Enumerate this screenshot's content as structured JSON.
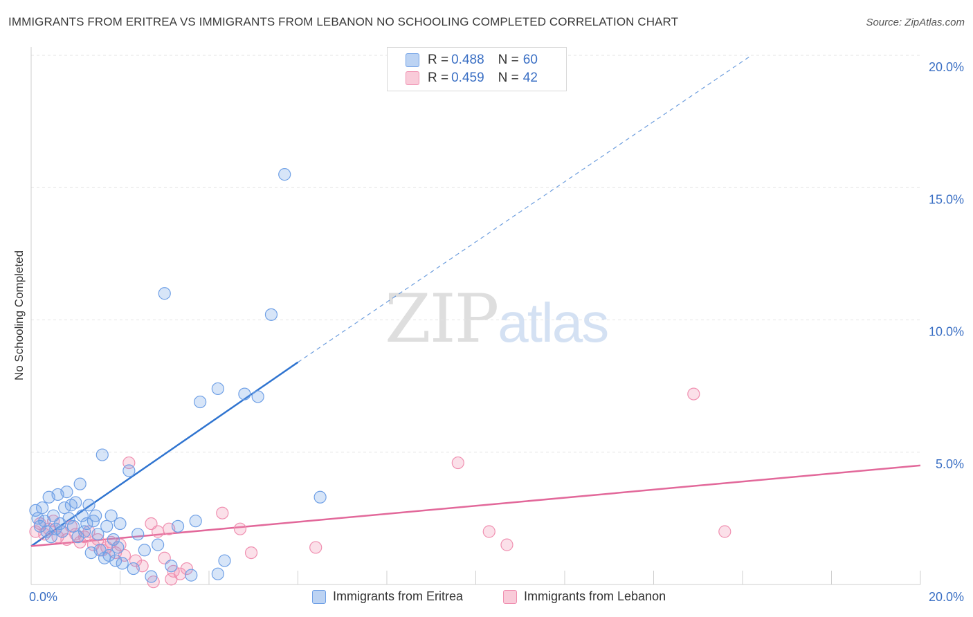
{
  "title": "IMMIGRANTS FROM ERITREA VS IMMIGRANTS FROM LEBANON NO SCHOOLING COMPLETED CORRELATION CHART",
  "source": "Source: ZipAtlas.com",
  "watermark": {
    "zip": "ZIP",
    "atlas": "atlas"
  },
  "colors": {
    "eritrea": "#6fa0e6",
    "lebanon": "#f08fb0",
    "eritrea_line": "#2f74d0",
    "lebanon_line": "#e2689a",
    "tick_label": "#3a6fc4"
  },
  "legend": {
    "r_label": "R = ",
    "n_label": "N = ",
    "rows": [
      {
        "r": "0.488",
        "n": "60"
      },
      {
        "r": "0.459",
        "n": "42"
      }
    ]
  },
  "chart_data": {
    "type": "scatter",
    "title": "IMMIGRANTS FROM ERITREA VS IMMIGRANTS FROM LEBANON NO SCHOOLING COMPLETED CORRELATION CHART",
    "xlabel": "",
    "ylabel": "No Schooling Completed",
    "xlim": [
      0,
      20
    ],
    "ylim": [
      0,
      20
    ],
    "x_tick_labels": [
      "0.0%",
      "20.0%"
    ],
    "y_tick_labels": [
      "5.0%",
      "10.0%",
      "15.0%",
      "20.0%"
    ],
    "y_ticks": [
      5,
      10,
      15,
      20
    ],
    "x_ticks": [
      0,
      2,
      4,
      6,
      8,
      10,
      12,
      14,
      16,
      18,
      20
    ],
    "grid": true,
    "legend_position": "bottom",
    "series": [
      {
        "name": "Immigrants from Eritrea",
        "r": 0.488,
        "n": 60,
        "trend": {
          "x0": 0,
          "y0": 1.45,
          "x1": 6.0,
          "y1": 8.4,
          "dashed_to": [
            16.2,
            20.0
          ]
        },
        "points": [
          [
            0.1,
            2.8
          ],
          [
            0.15,
            2.5
          ],
          [
            0.2,
            2.2
          ],
          [
            0.25,
            2.9
          ],
          [
            0.3,
            2.4
          ],
          [
            0.35,
            2.0
          ],
          [
            0.4,
            3.3
          ],
          [
            0.45,
            1.8
          ],
          [
            0.5,
            2.6
          ],
          [
            0.55,
            2.1
          ],
          [
            0.6,
            3.4
          ],
          [
            0.65,
            2.3
          ],
          [
            0.7,
            2.0
          ],
          [
            0.75,
            2.9
          ],
          [
            0.8,
            3.5
          ],
          [
            0.85,
            2.5
          ],
          [
            0.9,
            3.0
          ],
          [
            0.95,
            2.2
          ],
          [
            1.0,
            3.1
          ],
          [
            1.05,
            1.8
          ],
          [
            1.1,
            3.8
          ],
          [
            1.15,
            2.6
          ],
          [
            1.2,
            2.0
          ],
          [
            1.25,
            2.3
          ],
          [
            1.3,
            3.0
          ],
          [
            1.35,
            1.2
          ],
          [
            1.4,
            2.4
          ],
          [
            1.45,
            2.6
          ],
          [
            1.5,
            1.9
          ],
          [
            1.55,
            1.3
          ],
          [
            1.6,
            4.9
          ],
          [
            1.65,
            1.0
          ],
          [
            1.7,
            2.2
          ],
          [
            1.75,
            1.1
          ],
          [
            1.8,
            2.6
          ],
          [
            1.85,
            1.7
          ],
          [
            1.9,
            0.9
          ],
          [
            1.95,
            1.4
          ],
          [
            2.0,
            2.3
          ],
          [
            2.05,
            0.8
          ],
          [
            2.2,
            4.3
          ],
          [
            2.3,
            0.6
          ],
          [
            2.4,
            1.9
          ],
          [
            2.55,
            1.3
          ],
          [
            2.7,
            0.3
          ],
          [
            2.85,
            1.5
          ],
          [
            3.0,
            11.0
          ],
          [
            3.15,
            0.7
          ],
          [
            3.3,
            2.2
          ],
          [
            3.6,
            0.35
          ],
          [
            3.8,
            6.9
          ],
          [
            4.2,
            0.4
          ],
          [
            4.35,
            0.9
          ],
          [
            4.2,
            7.4
          ],
          [
            4.8,
            7.2
          ],
          [
            5.1,
            7.1
          ],
          [
            5.4,
            10.2
          ],
          [
            5.7,
            15.5
          ],
          [
            6.5,
            3.3
          ],
          [
            3.7,
            2.4
          ]
        ]
      },
      {
        "name": "Immigrants from Lebanon",
        "r": 0.459,
        "n": 42,
        "trend": {
          "x0": 0,
          "y0": 1.45,
          "x1": 20.0,
          "y1": 4.5
        },
        "points": [
          [
            0.1,
            2.0
          ],
          [
            0.2,
            2.3
          ],
          [
            0.3,
            1.9
          ],
          [
            0.4,
            2.1
          ],
          [
            0.5,
            2.4
          ],
          [
            0.6,
            1.8
          ],
          [
            0.7,
            2.0
          ],
          [
            0.8,
            1.7
          ],
          [
            0.9,
            2.2
          ],
          [
            1.0,
            1.9
          ],
          [
            1.1,
            1.6
          ],
          [
            1.2,
            1.8
          ],
          [
            1.3,
            2.0
          ],
          [
            1.4,
            1.5
          ],
          [
            1.5,
            1.7
          ],
          [
            1.6,
            1.3
          ],
          [
            1.7,
            1.4
          ],
          [
            1.8,
            1.6
          ],
          [
            1.9,
            1.2
          ],
          [
            2.0,
            1.5
          ],
          [
            2.1,
            1.1
          ],
          [
            2.2,
            4.6
          ],
          [
            2.35,
            0.9
          ],
          [
            2.5,
            0.7
          ],
          [
            2.7,
            2.3
          ],
          [
            2.85,
            2.0
          ],
          [
            3.0,
            1.0
          ],
          [
            3.1,
            2.1
          ],
          [
            3.2,
            0.5
          ],
          [
            3.35,
            0.4
          ],
          [
            3.5,
            0.6
          ],
          [
            3.15,
            0.2
          ],
          [
            2.75,
            0.1
          ],
          [
            4.3,
            2.7
          ],
          [
            4.7,
            2.1
          ],
          [
            4.95,
            1.2
          ],
          [
            6.4,
            1.4
          ],
          [
            9.6,
            4.6
          ],
          [
            10.3,
            2.0
          ],
          [
            10.7,
            1.5
          ],
          [
            14.9,
            7.2
          ],
          [
            15.6,
            2.0
          ]
        ]
      }
    ]
  }
}
